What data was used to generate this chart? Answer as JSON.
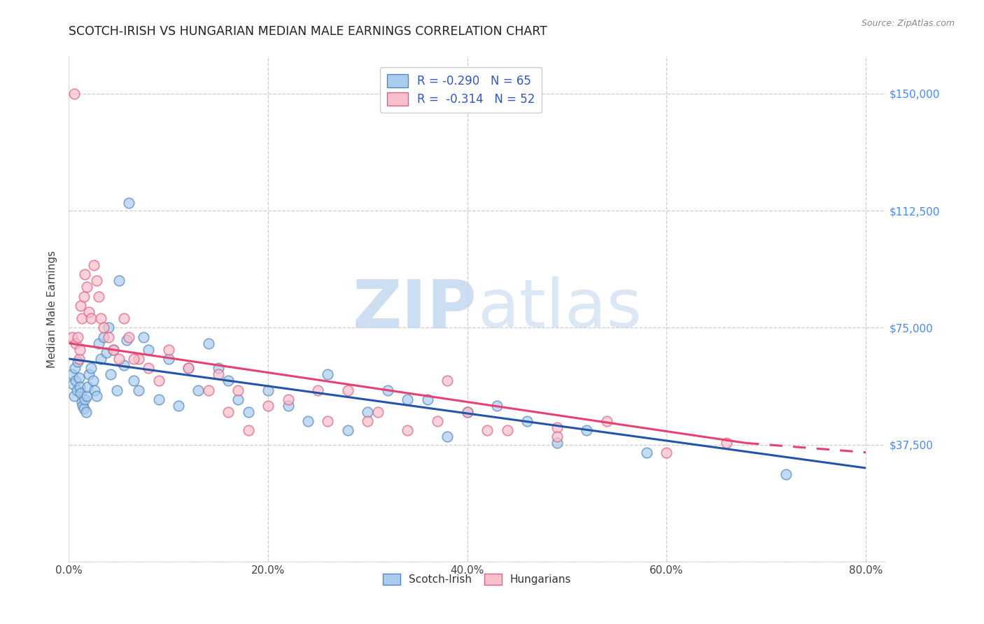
{
  "title": "SCOTCH-IRISH VS HUNGARIAN MEDIAN MALE EARNINGS CORRELATION CHART",
  "source": "Source: ZipAtlas.com",
  "ylabel": "Median Male Earnings",
  "xlim": [
    0.0,
    0.82
  ],
  "ylim": [
    0,
    162000
  ],
  "yticks": [
    0,
    37500,
    75000,
    112500,
    150000
  ],
  "ylabel_labels": [
    "",
    "$37,500",
    "$75,000",
    "$112,500",
    "$150,000"
  ],
  "xticks": [
    0.0,
    0.2,
    0.4,
    0.6,
    0.8
  ],
  "xlabel_labels": [
    "0.0%",
    "20.0%",
    "40.0%",
    "60.0%",
    "80.0%"
  ],
  "scotch_irish_color": "#7bafd4",
  "scotch_irish_edge": "#5588bb",
  "hungarian_color": "#f4a0b0",
  "hungarian_edge": "#e06080",
  "trendline_scotch_color": "#2255aa",
  "trendline_hungarian_color": "#e84070",
  "watermark_zip_color": "#c5d8f0",
  "watermark_atlas_color": "#c0cce0",
  "background_color": "#ffffff",
  "grid_color": "#cccccc",
  "yaxis_label_color": "#4488ff",
  "legend_label_color": "#3355cc",
  "legend_r1": "R = -0.290   N = 65",
  "legend_r2": "R =  -0.314   N = 52",
  "scotch_irish_x": [
    0.003,
    0.004,
    0.005,
    0.006,
    0.007,
    0.008,
    0.009,
    0.01,
    0.011,
    0.012,
    0.013,
    0.014,
    0.015,
    0.016,
    0.017,
    0.018,
    0.019,
    0.02,
    0.022,
    0.024,
    0.026,
    0.028,
    0.03,
    0.032,
    0.035,
    0.038,
    0.04,
    0.042,
    0.045,
    0.048,
    0.05,
    0.055,
    0.058,
    0.06,
    0.065,
    0.07,
    0.075,
    0.08,
    0.09,
    0.1,
    0.11,
    0.12,
    0.13,
    0.14,
    0.15,
    0.16,
    0.17,
    0.18,
    0.2,
    0.22,
    0.24,
    0.26,
    0.28,
    0.3,
    0.32,
    0.34,
    0.36,
    0.38,
    0.4,
    0.43,
    0.46,
    0.49,
    0.52,
    0.58,
    0.72
  ],
  "scotch_irish_y": [
    60000,
    57000,
    53000,
    62000,
    58000,
    55000,
    64000,
    59000,
    56000,
    54000,
    51000,
    50000,
    49000,
    52000,
    48000,
    53000,
    56000,
    60000,
    62000,
    58000,
    55000,
    53000,
    70000,
    65000,
    72000,
    67000,
    75000,
    60000,
    68000,
    55000,
    90000,
    63000,
    71000,
    115000,
    58000,
    55000,
    72000,
    68000,
    52000,
    65000,
    50000,
    62000,
    55000,
    70000,
    62000,
    58000,
    52000,
    48000,
    55000,
    50000,
    45000,
    60000,
    42000,
    48000,
    55000,
    52000,
    52000,
    40000,
    48000,
    50000,
    45000,
    38000,
    42000,
    35000,
    28000
  ],
  "hungarian_x": [
    0.003,
    0.005,
    0.007,
    0.009,
    0.01,
    0.011,
    0.012,
    0.013,
    0.015,
    0.016,
    0.018,
    0.02,
    0.022,
    0.025,
    0.028,
    0.03,
    0.032,
    0.035,
    0.04,
    0.045,
    0.05,
    0.055,
    0.06,
    0.07,
    0.08,
    0.09,
    0.1,
    0.12,
    0.14,
    0.16,
    0.18,
    0.2,
    0.22,
    0.25,
    0.28,
    0.31,
    0.34,
    0.37,
    0.4,
    0.44,
    0.49,
    0.54,
    0.6,
    0.66,
    0.49,
    0.38,
    0.15,
    0.17,
    0.26,
    0.065,
    0.3,
    0.42
  ],
  "hungarian_y": [
    72000,
    150000,
    70000,
    72000,
    65000,
    68000,
    82000,
    78000,
    85000,
    92000,
    88000,
    80000,
    78000,
    95000,
    90000,
    85000,
    78000,
    75000,
    72000,
    68000,
    65000,
    78000,
    72000,
    65000,
    62000,
    58000,
    68000,
    62000,
    55000,
    48000,
    42000,
    50000,
    52000,
    55000,
    55000,
    48000,
    42000,
    45000,
    48000,
    42000,
    43000,
    45000,
    35000,
    38000,
    40000,
    58000,
    60000,
    55000,
    45000,
    65000,
    45000,
    42000
  ]
}
